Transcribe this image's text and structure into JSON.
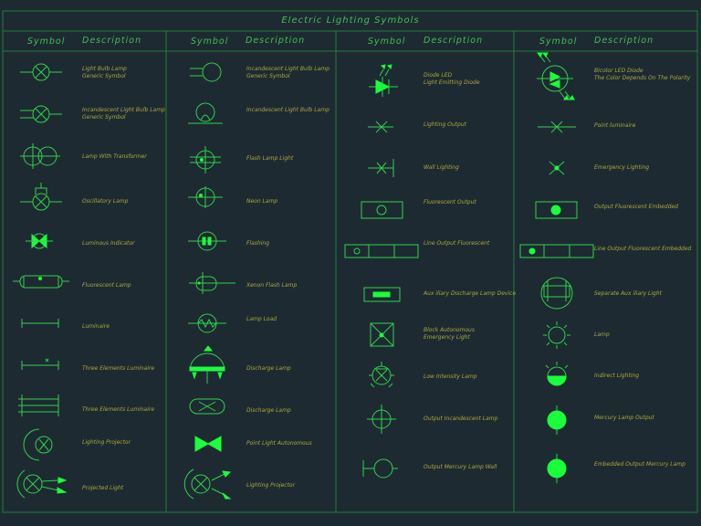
{
  "title": "Electric Lighting Symbols",
  "header": {
    "symbol": "Symbol",
    "description": "Description"
  },
  "col1": [
    {
      "l1": "Light Bulb Lamp",
      "l2": "Generic Symbol"
    },
    {
      "l1": "Incandescent Light Bulb Lamp",
      "l2": "Generic Symbol"
    },
    {
      "l1": "Lamp With Transformer",
      "l2": ""
    },
    {
      "l1": "Oscillatory Lamp",
      "l2": ""
    },
    {
      "l1": "Luminous Indicator",
      "l2": ""
    },
    {
      "l1": "Fluorescent Lamp",
      "l2": ""
    },
    {
      "l1": "Luminaire",
      "l2": ""
    },
    {
      "l1": "Three Elements Luminaire",
      "l2": ""
    },
    {
      "l1": "Three Elements Luminaire",
      "l2": ""
    },
    {
      "l1": "Lighting Projector",
      "l2": ""
    },
    {
      "l1": "Projected Light",
      "l2": ""
    }
  ],
  "col2": [
    {
      "l1": "Incandescent Light Bulb Lamp",
      "l2": "Generic Symbol"
    },
    {
      "l1": "Incandescent Light Bulb Lamp",
      "l2": ""
    },
    {
      "l1": "Flash Lamp Light",
      "l2": ""
    },
    {
      "l1": "Neon Lamp",
      "l2": ""
    },
    {
      "l1": "Flashing",
      "l2": ""
    },
    {
      "l1": "Xenon Flash Lamp",
      "l2": ""
    },
    {
      "l1": "Lamp Load",
      "l2": ""
    },
    {
      "l1": "Discharge Lamp",
      "l2": ""
    },
    {
      "l1": "Discharge Lamp",
      "l2": ""
    },
    {
      "l1": "Point Light Autonomous",
      "l2": ""
    },
    {
      "l1": "Lighting Projector",
      "l2": ""
    }
  ],
  "col3": [
    {
      "l1": "Diode LED",
      "l2": "Light Emitting Diode"
    },
    {
      "l1": "Lighting Output",
      "l2": ""
    },
    {
      "l1": "Wall Lighting",
      "l2": ""
    },
    {
      "l1": "Fluorescent Output",
      "l2": ""
    },
    {
      "l1": "Line Output Fluorescent",
      "l2": ""
    },
    {
      "l1": "Aux iliary Discharge Lamp Device",
      "l2": ""
    },
    {
      "l1": "Block Autonomous",
      "l2": "Emergency Light"
    },
    {
      "l1": "Low Intensity Lamp",
      "l2": ""
    },
    {
      "l1": "Output Incandescent Lamp",
      "l2": ""
    },
    {
      "l1": "Output Mercury Lamp Wall",
      "l2": ""
    }
  ],
  "col4": [
    {
      "l1": "Bicolor LED Diode",
      "l2": "The Color Depends On The Polarity"
    },
    {
      "l1": "Point luminaire",
      "l2": ""
    },
    {
      "l1": "Emergency Lighting",
      "l2": ""
    },
    {
      "l1": "Output Fluorescent Embedded",
      "l2": ""
    },
    {
      "l1": "Line Output Fluorescent Embedded",
      "l2": ""
    },
    {
      "l1": "Separate Aux iliary Light",
      "l2": ""
    },
    {
      "l1": "Lamp",
      "l2": ""
    },
    {
      "l1": "Indirect Lighting",
      "l2": ""
    },
    {
      "l1": "Mercury Lamp Output",
      "l2": ""
    },
    {
      "l1": "Embedded Output Mercury Lamp",
      "l2": ""
    }
  ]
}
